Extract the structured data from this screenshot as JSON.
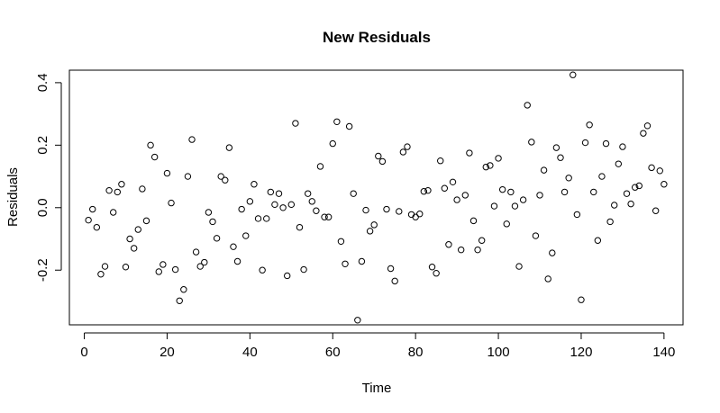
{
  "chart_data": {
    "type": "scatter",
    "title": "New Residuals",
    "xlabel": "Time",
    "ylabel": "Residuals",
    "xlim": [
      -3.6,
      144.6
    ],
    "ylim": [
      -0.375,
      0.44
    ],
    "xticks": [
      0,
      20,
      40,
      60,
      80,
      100,
      120,
      140
    ],
    "yticks": [
      -0.2,
      0.0,
      0.2,
      0.4
    ],
    "xtick_labels": [
      "0",
      "20",
      "40",
      "60",
      "80",
      "100",
      "120",
      "140"
    ],
    "ytick_labels": [
      "-0.2",
      "0.0",
      "0.2",
      "0.4"
    ],
    "grid": false,
    "series": [
      {
        "name": "residuals",
        "x": [
          1,
          2,
          3,
          4,
          5,
          6,
          7,
          8,
          9,
          10,
          11,
          12,
          13,
          14,
          15,
          16,
          17,
          18,
          19,
          20,
          21,
          22,
          23,
          24,
          25,
          26,
          27,
          28,
          29,
          30,
          31,
          32,
          33,
          34,
          35,
          36,
          37,
          38,
          39,
          40,
          41,
          42,
          43,
          44,
          45,
          46,
          47,
          48,
          49,
          50,
          51,
          52,
          53,
          54,
          55,
          56,
          57,
          58,
          59,
          60,
          61,
          62,
          63,
          64,
          65,
          66,
          67,
          68,
          69,
          70,
          71,
          72,
          73,
          74,
          75,
          76,
          77,
          78,
          79,
          80,
          81,
          82,
          83,
          84,
          85,
          86,
          87,
          88,
          89,
          90,
          91,
          92,
          93,
          94,
          95,
          96,
          97,
          98,
          99,
          100,
          101,
          102,
          103,
          104,
          105,
          106,
          107,
          108,
          109,
          110,
          111,
          112,
          113,
          114,
          115,
          116,
          117,
          118,
          119,
          120,
          121,
          122,
          123,
          124,
          125,
          126,
          127,
          128,
          129,
          130,
          131,
          132,
          133,
          134,
          135,
          136,
          137,
          138,
          139,
          140
        ],
        "y": [
          -0.04,
          -0.005,
          -0.063,
          -0.213,
          -0.188,
          0.055,
          -0.015,
          0.05,
          0.075,
          -0.19,
          -0.1,
          -0.13,
          -0.07,
          0.06,
          -0.042,
          0.2,
          0.162,
          -0.205,
          -0.182,
          0.11,
          0.015,
          -0.198,
          -0.298,
          -0.262,
          0.1,
          0.218,
          -0.142,
          -0.188,
          -0.175,
          -0.015,
          -0.045,
          -0.098,
          0.1,
          0.088,
          0.192,
          -0.125,
          -0.172,
          -0.005,
          -0.09,
          0.02,
          0.075,
          -0.035,
          -0.2,
          -0.035,
          0.05,
          0.01,
          0.045,
          0.0,
          -0.218,
          0.01,
          0.27,
          -0.063,
          -0.198,
          0.045,
          0.02,
          -0.01,
          0.132,
          -0.03,
          -0.03,
          0.205,
          0.275,
          -0.108,
          -0.18,
          0.26,
          0.045,
          -0.36,
          -0.172,
          -0.008,
          -0.075,
          -0.055,
          0.165,
          0.148,
          -0.005,
          -0.195,
          -0.235,
          -0.012,
          0.178,
          0.195,
          -0.022,
          -0.03,
          -0.02,
          0.052,
          0.055,
          -0.19,
          -0.21,
          0.15,
          0.062,
          -0.118,
          0.082,
          0.025,
          -0.135,
          0.04,
          0.175,
          -0.042,
          -0.135,
          -0.105,
          0.13,
          0.135,
          0.005,
          0.158,
          0.058,
          -0.052,
          0.05,
          0.005,
          -0.188,
          0.025,
          0.328,
          0.21,
          -0.09,
          0.04,
          0.12,
          -0.228,
          -0.145,
          0.192,
          0.16,
          0.05,
          0.095,
          0.425,
          -0.022,
          -0.295,
          0.208,
          0.265,
          0.05,
          -0.105,
          0.1,
          0.205,
          -0.045,
          0.008,
          0.14,
          0.195,
          0.045,
          0.012,
          0.065,
          0.07,
          0.238,
          0.262,
          0.128,
          -0.01,
          0.118,
          0.075
        ]
      }
    ]
  }
}
